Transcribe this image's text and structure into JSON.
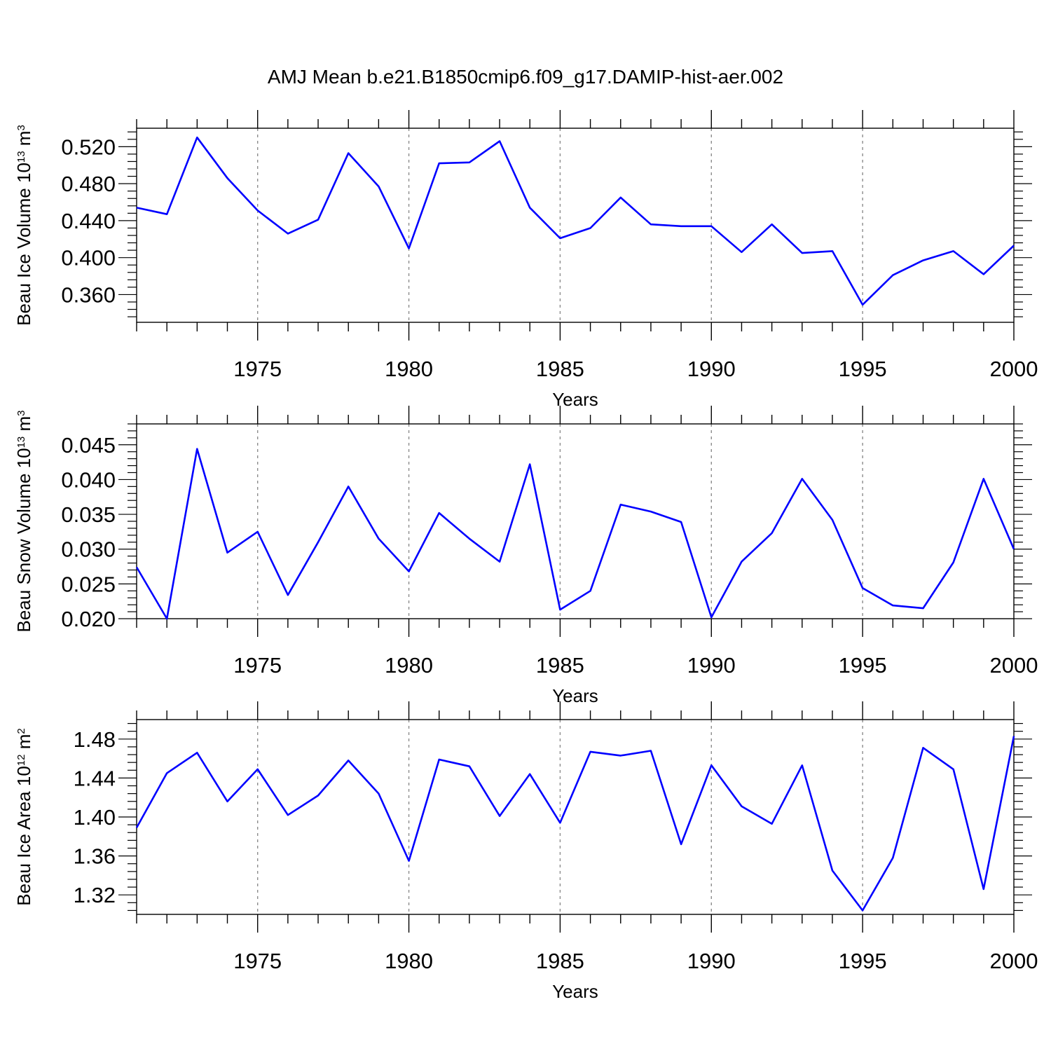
{
  "title": "AMJ Mean b.e21.B1850cmip6.f09_g17.DAMIP-hist-aer.002",
  "colors": {
    "line": "#0000ff",
    "axis": "#000000",
    "grid": "#8c8c8c"
  },
  "chart_data": [
    {
      "type": "line",
      "ylabel": {
        "base": "Beau Ice Volume 10",
        "sup1": "13",
        "mid": " m",
        "sup2": "3"
      },
      "xlabel": "Years",
      "xlim": [
        1971,
        2000
      ],
      "ylim": [
        0.33,
        0.54
      ],
      "xticks": [
        1975,
        1980,
        1985,
        1990,
        1995,
        2000
      ],
      "xtick_labels": [
        "1975",
        "1980",
        "1985",
        "1990",
        "1995",
        "2000"
      ],
      "yticks": [
        0.36,
        0.4,
        0.44,
        0.48,
        0.52
      ],
      "ytick_labels": [
        "0.360",
        "0.400",
        "0.440",
        "0.480",
        "0.520"
      ],
      "grid": "vertical dashed at major x ticks",
      "x": [
        1971,
        1972,
        1973,
        1974,
        1975,
        1976,
        1977,
        1978,
        1979,
        1980,
        1981,
        1982,
        1983,
        1984,
        1985,
        1986,
        1987,
        1988,
        1989,
        1990,
        1991,
        1992,
        1993,
        1994,
        1995,
        1996,
        1997,
        1998,
        1999,
        2000
      ],
      "values": [
        0.454,
        0.447,
        0.53,
        0.486,
        0.451,
        0.426,
        0.441,
        0.513,
        0.477,
        0.41,
        0.502,
        0.503,
        0.526,
        0.454,
        0.421,
        0.432,
        0.465,
        0.436,
        0.434,
        0.434,
        0.406,
        0.436,
        0.405,
        0.407,
        0.349,
        0.381,
        0.397,
        0.407,
        0.382,
        0.413
      ]
    },
    {
      "type": "line",
      "ylabel": {
        "base": "Beau Snow Volume 10",
        "sup1": "13",
        "mid": " m",
        "sup2": "3"
      },
      "xlabel": "Years",
      "xlim": [
        1971,
        2000
      ],
      "ylim": [
        0.02,
        0.048
      ],
      "xticks": [
        1975,
        1980,
        1985,
        1990,
        1995,
        2000
      ],
      "xtick_labels": [
        "1975",
        "1980",
        "1985",
        "1990",
        "1995",
        "2000"
      ],
      "yticks": [
        0.02,
        0.025,
        0.03,
        0.035,
        0.04,
        0.045
      ],
      "ytick_labels": [
        "0.020",
        "0.025",
        "0.030",
        "0.035",
        "0.040",
        "0.045"
      ],
      "grid": "vertical dashed at major x ticks",
      "x": [
        1971,
        1972,
        1973,
        1974,
        1975,
        1976,
        1977,
        1978,
        1979,
        1980,
        1981,
        1982,
        1983,
        1984,
        1985,
        1986,
        1987,
        1988,
        1989,
        1990,
        1991,
        1992,
        1993,
        1994,
        1995,
        1996,
        1997,
        1998,
        1999,
        2000
      ],
      "values": [
        0.0274,
        0.02,
        0.0444,
        0.0295,
        0.0325,
        0.0234,
        0.031,
        0.039,
        0.0315,
        0.0268,
        0.0352,
        0.0315,
        0.0282,
        0.0422,
        0.0213,
        0.024,
        0.0364,
        0.0354,
        0.0339,
        0.0202,
        0.0282,
        0.0323,
        0.0401,
        0.0342,
        0.0244,
        0.0219,
        0.0215,
        0.0281,
        0.0401,
        0.03
      ]
    },
    {
      "type": "line",
      "ylabel": {
        "base": "Beau Ice Area 10",
        "sup1": "12",
        "mid": " m",
        "sup2": "2"
      },
      "xlabel": "Years",
      "xlim": [
        1971,
        2000
      ],
      "ylim": [
        1.3,
        1.5
      ],
      "xticks": [
        1975,
        1980,
        1985,
        1990,
        1995,
        2000
      ],
      "xtick_labels": [
        "1975",
        "1980",
        "1985",
        "1990",
        "1995",
        "2000"
      ],
      "yticks": [
        1.32,
        1.36,
        1.4,
        1.44,
        1.48
      ],
      "ytick_labels": [
        "1.32",
        "1.36",
        "1.40",
        "1.44",
        "1.48"
      ],
      "grid": "vertical dashed at major x ticks",
      "x": [
        1971,
        1972,
        1973,
        1974,
        1975,
        1976,
        1977,
        1978,
        1979,
        1980,
        1981,
        1982,
        1983,
        1984,
        1985,
        1986,
        1987,
        1988,
        1989,
        1990,
        1991,
        1992,
        1993,
        1994,
        1995,
        1996,
        1997,
        1998,
        1999,
        2000
      ],
      "values": [
        1.389,
        1.445,
        1.466,
        1.416,
        1.449,
        1.402,
        1.422,
        1.458,
        1.424,
        1.355,
        1.459,
        1.452,
        1.401,
        1.444,
        1.394,
        1.467,
        1.463,
        1.468,
        1.372,
        1.453,
        1.411,
        1.393,
        1.453,
        1.345,
        1.304,
        1.358,
        1.471,
        1.449,
        1.326,
        1.483
      ]
    }
  ]
}
